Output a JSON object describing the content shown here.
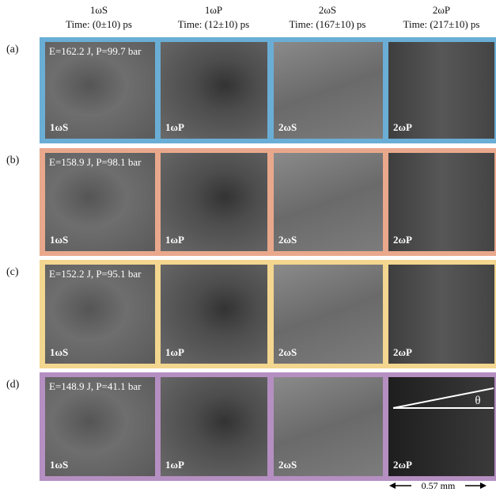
{
  "columns": [
    {
      "label": "1ωS",
      "time": "Time: (0±10) ps"
    },
    {
      "label": "1ωP",
      "time": "Time: (12±10) ps"
    },
    {
      "label": "2ωS",
      "time": "Time: (167±10) ps"
    },
    {
      "label": "2ωP",
      "time": "Time: (217±10) ps"
    }
  ],
  "rows": [
    {
      "label": "(a)",
      "annotation": "E=162.2 J, P=99.7 bar",
      "border_color": "#6aaed6",
      "panels": [
        "1ωS",
        "1ωP",
        "2ωS",
        "2ωP"
      ]
    },
    {
      "label": "(b)",
      "annotation": "E=158.9 J, P=98.1 bar",
      "border_color": "#e9a88c",
      "panels": [
        "1ωS",
        "1ωP",
        "2ωS",
        "2ωP"
      ]
    },
    {
      "label": "(c)",
      "annotation": "E=152.2 J, P=95.1 bar",
      "border_color": "#f3d68f",
      "panels": [
        "1ωS",
        "1ωP",
        "2ωS",
        "2ωP"
      ]
    },
    {
      "label": "(d)",
      "annotation": "E=148.9 J, P=41.1 bar",
      "border_color": "#b58fc2",
      "panels": [
        "1ωS",
        "1ωP",
        "2ωS",
        "2ωP"
      ]
    }
  ],
  "angle_label": "θ",
  "scale_bar": "0.57 mm"
}
